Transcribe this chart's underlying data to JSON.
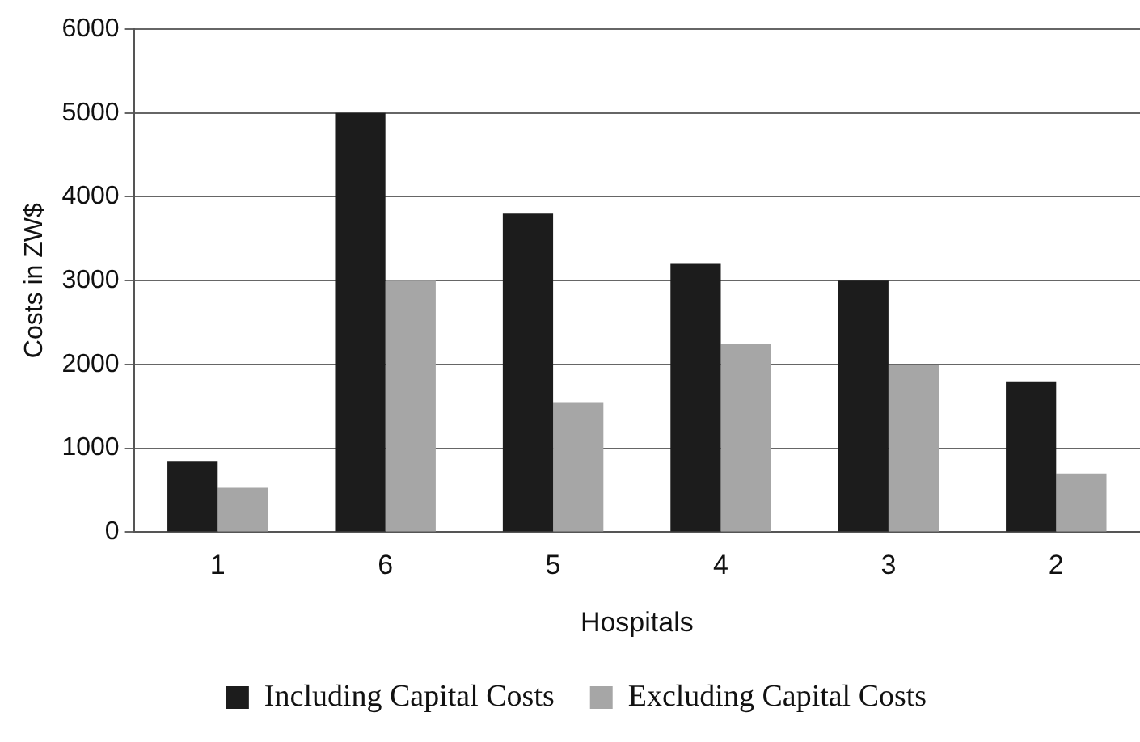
{
  "chart_data": {
    "type": "bar",
    "xlabel": "Hospitals",
    "ylabel": "Costs in ZW$",
    "categories": [
      "1",
      "6",
      "5",
      "4",
      "3",
      "2"
    ],
    "series": [
      {
        "name": "Including Capital Costs",
        "color": "#1c1c1c",
        "values": [
          850,
          5000,
          3800,
          3200,
          3000,
          1800
        ]
      },
      {
        "name": "Excluding Capital Costs",
        "color": "#a6a6a6",
        "values": [
          530,
          3000,
          1550,
          2250,
          2000,
          700
        ]
      }
    ],
    "ylim": [
      0,
      6000
    ],
    "yticks": [
      0,
      1000,
      2000,
      3000,
      4000,
      5000,
      6000
    ],
    "grid": "y",
    "legend": "bottom"
  }
}
